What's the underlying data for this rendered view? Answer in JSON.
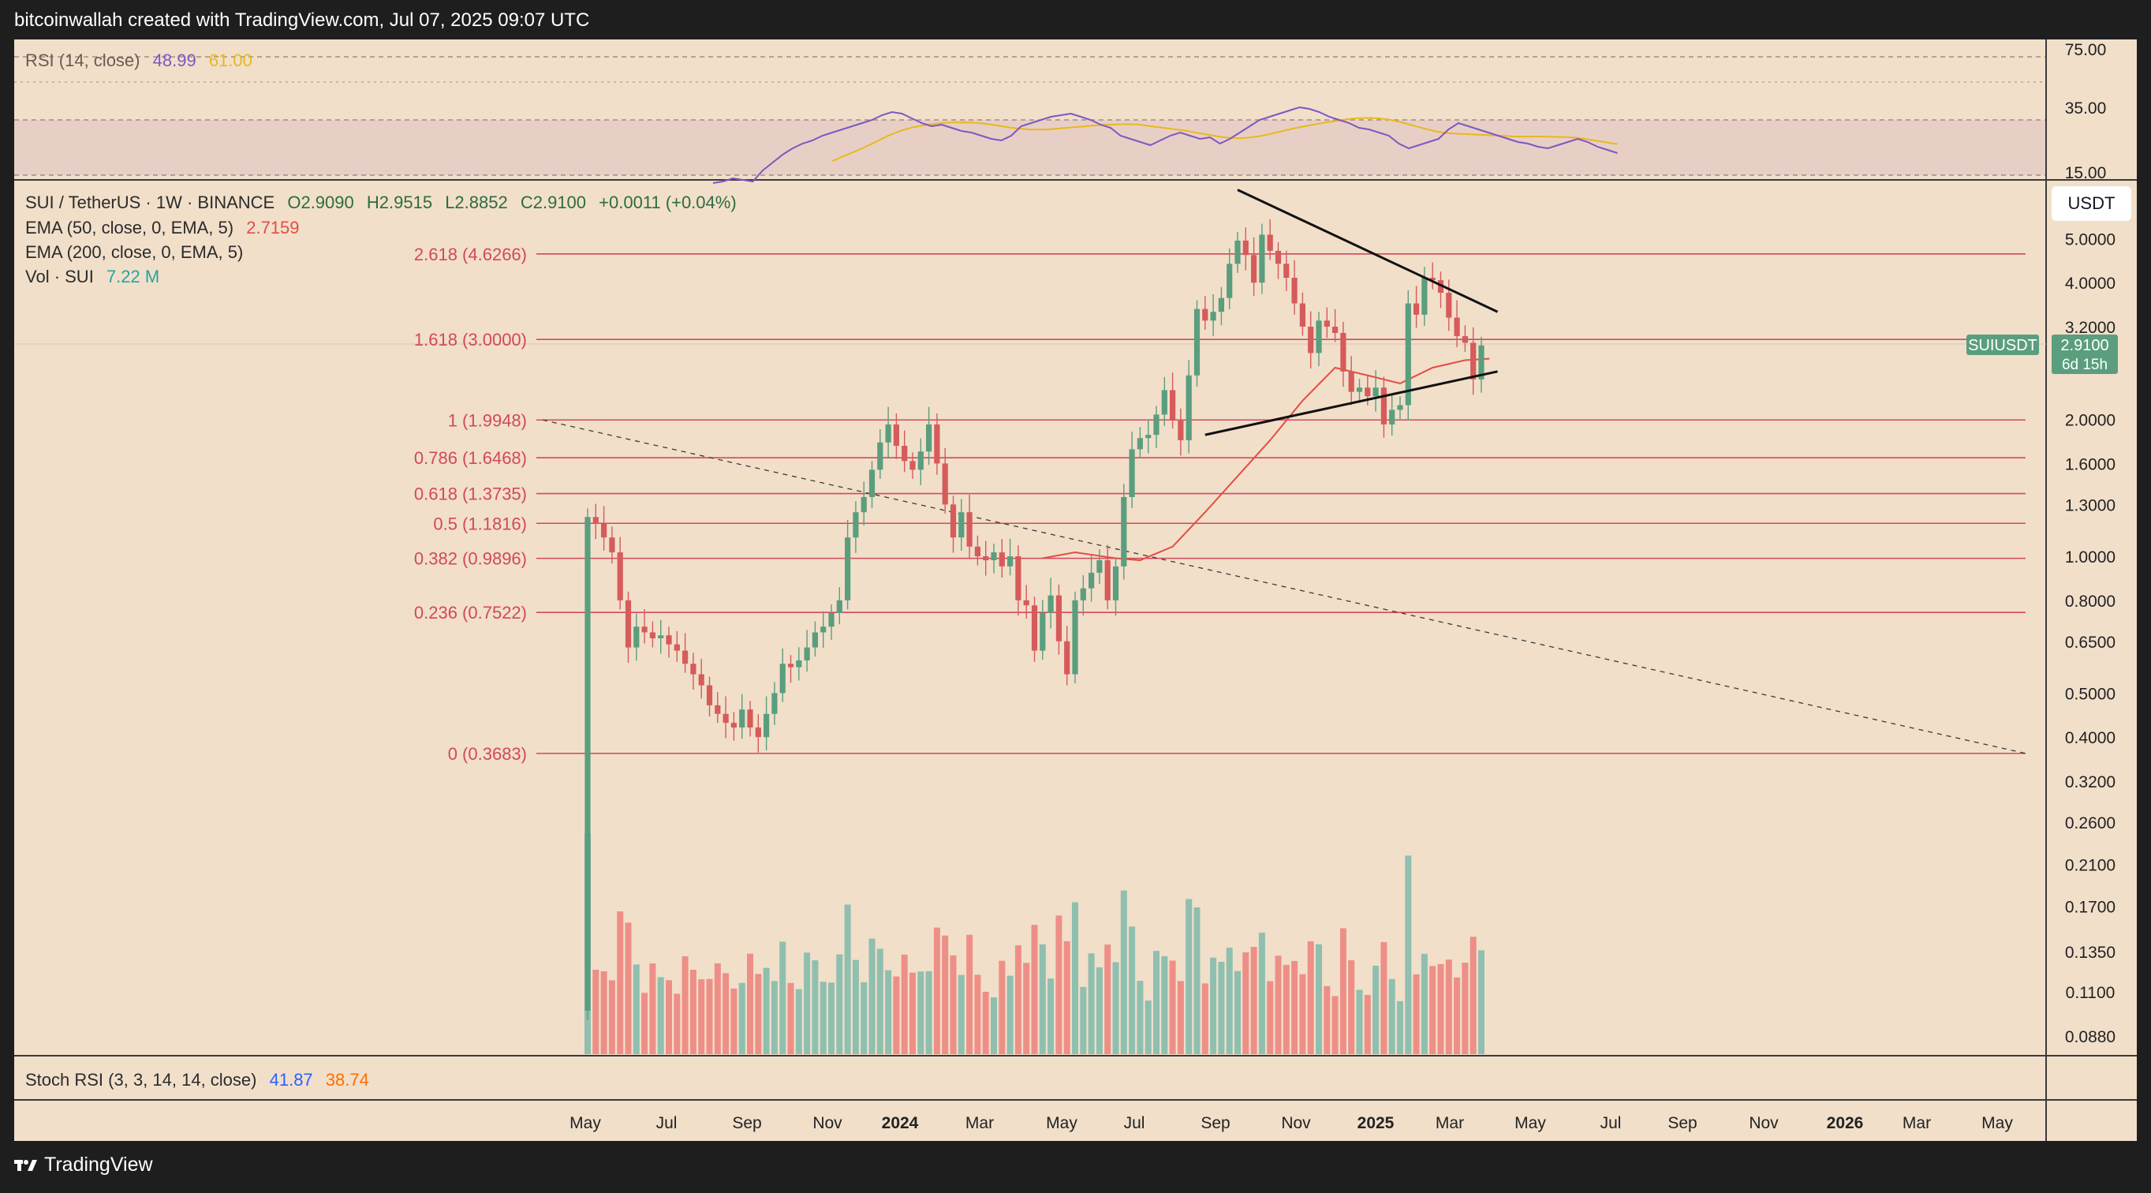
{
  "header": {
    "title": "bitcoinwallah created with TradingView.com, Jul 07, 2025 09:07 UTC"
  },
  "footer": {
    "brand": "TradingView"
  },
  "colors": {
    "background": "#f1dfca",
    "frame": "#1e1e1e",
    "bull": "#5a9e7e",
    "bear": "#d65b5b",
    "bull_vol": "#8fbfaf",
    "bear_vol": "#ee8f87",
    "fib": "#d2485f",
    "rsi": "#7e57c2",
    "rsi_ma": "#e8b91c",
    "ema50": "#e54d42",
    "stoch_k": "#2962ff",
    "stoch_d": "#ff6d00",
    "vol_value": "#26a69a"
  },
  "rsi_panel": {
    "label": "RSI (14, close)",
    "value": "48.99",
    "ma_value": "61.00",
    "axis_labels": [
      "75.00",
      "35.00",
      "15.00"
    ]
  },
  "main_panel": {
    "symbol_line": {
      "symbol": "SUI / TetherUS · 1W · BINANCE",
      "open": "O2.9090",
      "high": "H2.9515",
      "low": "L2.8852",
      "close": "C2.9100",
      "change": "+0.0011 (+0.04%)"
    },
    "ema50": {
      "label": "EMA (50, close, 0, EMA, 5)",
      "value": "2.7159"
    },
    "ema200": {
      "label": "EMA (200, close, 0, EMA, 5)"
    },
    "vol": {
      "label": "Vol · SUI",
      "value": "7.22 M"
    },
    "currency_button": "USDT",
    "price_tag": {
      "symbol": "SUIUSDT",
      "price": "2.9100",
      "countdown": "6d 15h"
    }
  },
  "stoch_panel": {
    "label": "Stoch RSI (3, 3, 14, 14, close)",
    "k_value": "41.87",
    "d_value": "38.74"
  },
  "chart_data": {
    "type": "candlestick",
    "title": "SUI / TetherUS · 1W · BINANCE",
    "scale": "log",
    "price_axis_labels": [
      5.0,
      4.0,
      3.2,
      2.0,
      1.6,
      1.3,
      1.0,
      0.8,
      0.65,
      0.5,
      0.4,
      0.32,
      0.26,
      0.21,
      0.17,
      0.135,
      0.11,
      0.088
    ],
    "price_axis_text": [
      "5.0000",
      "4.0000",
      "3.2000",
      "2.0000",
      "1.6000",
      "1.3000",
      "1.0000",
      "0.8000",
      "0.6500",
      "0.5000",
      "0.4000",
      "0.3200",
      "0.2600",
      "0.2100",
      "0.1700",
      "0.1350",
      "0.1100",
      "0.0880"
    ],
    "time_axis_labels": [
      "May",
      "Jul",
      "Sep",
      "Nov",
      "2024",
      "Mar",
      "May",
      "Jul",
      "Sep",
      "Nov",
      "2025",
      "Mar",
      "May",
      "Jul",
      "Sep",
      "Nov",
      "2026",
      "Mar",
      "May"
    ],
    "fib_levels": [
      {
        "label": "2.618 (4.6266)",
        "value": 4.6266
      },
      {
        "label": "1.618 (3.0000)",
        "value": 3.0
      },
      {
        "label": "1 (1.9948)",
        "value": 1.9948
      },
      {
        "label": "0.786 (1.6468)",
        "value": 1.6468
      },
      {
        "label": "0.618 (1.3735)",
        "value": 1.3735
      },
      {
        "label": "0.5 (1.1816)",
        "value": 1.1816
      },
      {
        "label": "0.382 (0.9896)",
        "value": 0.9896
      },
      {
        "label": "0.236 (0.7522)",
        "value": 0.7522
      },
      {
        "label": "0 (0.3683)",
        "value": 0.3683
      }
    ],
    "weekly_closes": [
      1.22,
      1.18,
      1.1,
      1.02,
      0.8,
      0.63,
      0.7,
      0.68,
      0.66,
      0.67,
      0.64,
      0.62,
      0.58,
      0.55,
      0.52,
      0.47,
      0.45,
      0.43,
      0.42,
      0.46,
      0.42,
      0.4,
      0.45,
      0.5,
      0.58,
      0.57,
      0.59,
      0.63,
      0.68,
      0.7,
      0.75,
      0.8,
      1.1,
      1.25,
      1.35,
      1.55,
      1.78,
      1.95,
      1.75,
      1.62,
      1.55,
      1.7,
      1.95,
      1.6,
      1.3,
      1.1,
      1.25,
      1.05,
      1.0,
      0.98,
      1.02,
      0.95,
      1.0,
      0.8,
      0.78,
      0.62,
      0.75,
      0.82,
      0.65,
      0.55,
      0.8,
      0.85,
      0.92,
      0.98,
      0.8,
      0.95,
      1.35,
      1.72,
      1.82,
      1.85,
      2.05,
      2.32,
      2.0,
      1.8,
      2.5,
      3.5,
      3.3,
      3.45,
      3.7,
      4.4,
      4.95,
      4.6,
      4.0,
      5.1,
      4.7,
      4.4,
      4.1,
      3.6,
      3.2,
      2.8,
      3.3,
      3.2,
      3.1,
      2.55,
      2.3,
      2.35,
      2.25,
      2.35,
      1.95,
      2.1,
      2.15,
      3.6,
      3.4,
      4.1,
      4.05,
      3.8,
      3.35,
      3.05,
      2.95,
      2.45,
      2.91
    ],
    "ema50_points": [
      [
        56,
        0.99
      ],
      [
        60,
        1.02
      ],
      [
        65,
        0.99
      ],
      [
        68,
        0.98
      ],
      [
        72,
        1.05
      ],
      [
        76,
        1.25
      ],
      [
        80,
        1.5
      ],
      [
        84,
        1.8
      ],
      [
        88,
        2.2
      ],
      [
        92,
        2.6
      ],
      [
        96,
        2.5
      ],
      [
        100,
        2.4
      ],
      [
        104,
        2.6
      ],
      [
        108,
        2.7
      ],
      [
        111,
        2.72
      ]
    ],
    "descending_trendline": [
      [
        80,
        6.4
      ],
      [
        112,
        3.45
      ]
    ],
    "ascending_trendline": [
      [
        76,
        1.85
      ],
      [
        112,
        2.55
      ]
    ],
    "rsi_axis": [
      75.0,
      35.0,
      15.0
    ],
    "rsi_overbought": 70,
    "rsi_oversold": 30,
    "rsi_ma_final": 61.0,
    "rsi_final": 48.99,
    "stoch_k": 41.87,
    "stoch_d": 38.74
  }
}
